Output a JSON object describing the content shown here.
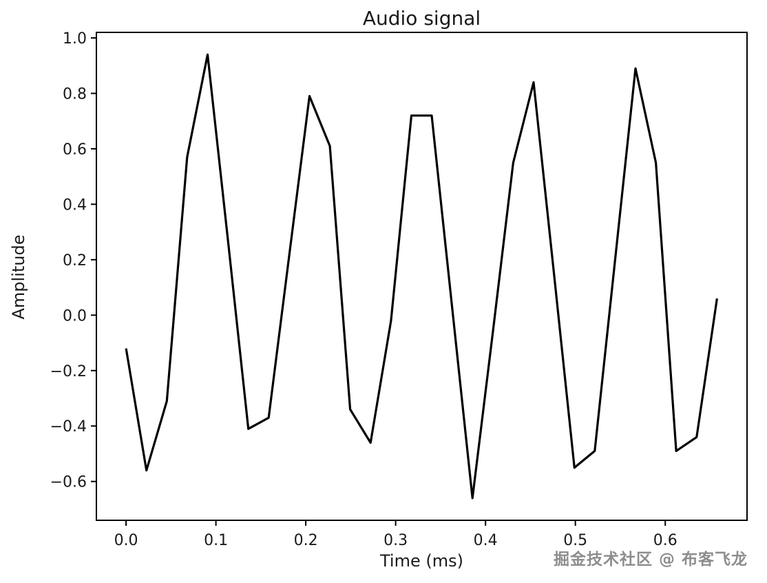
{
  "chart_data": {
    "type": "line",
    "title": "Audio signal",
    "xlabel": "Time (ms)",
    "ylabel": "Amplitude",
    "grid": false,
    "legend": null,
    "line_color": "#000000",
    "line_width": 3.2,
    "xlim": [
      -0.033,
      0.691
    ],
    "ylim": [
      -0.74,
      1.02
    ],
    "xticks": [
      0.0,
      0.1,
      0.2,
      0.3,
      0.4,
      0.5,
      0.6
    ],
    "xtick_labels": [
      "0.0",
      "0.1",
      "0.2",
      "0.3",
      "0.4",
      "0.5",
      "0.6"
    ],
    "yticks": [
      1.0,
      0.8,
      0.6,
      0.4,
      0.2,
      0.0,
      -0.2,
      -0.4,
      -0.6
    ],
    "ytick_labels": [
      "1.0",
      "0.8",
      "0.6",
      "0.4",
      "0.2",
      "0.0",
      "−0.2",
      "−0.4",
      "−0.6"
    ],
    "x": [
      0.0,
      0.0227,
      0.0454,
      0.068,
      0.0907,
      0.1134,
      0.1361,
      0.1587,
      0.1814,
      0.2041,
      0.2268,
      0.2494,
      0.2721,
      0.2948,
      0.3175,
      0.3401,
      0.3628,
      0.3855,
      0.4082,
      0.4308,
      0.4535,
      0.4762,
      0.4989,
      0.5215,
      0.5442,
      0.5669,
      0.5896,
      0.6122,
      0.6349,
      0.6576
    ],
    "y": [
      -0.12,
      -0.56,
      -0.31,
      0.57,
      0.94,
      0.27,
      -0.41,
      -0.37,
      0.21,
      0.79,
      0.61,
      -0.34,
      -0.46,
      -0.02,
      0.72,
      0.72,
      0.03,
      -0.66,
      -0.06,
      0.55,
      0.84,
      0.15,
      -0.55,
      -0.49,
      0.2,
      0.89,
      0.55,
      -0.49,
      -0.44,
      0.06
    ]
  },
  "watermark": {
    "text": "掘金技术社区 @ 布客飞龙",
    "color": "#8d8d8d"
  }
}
